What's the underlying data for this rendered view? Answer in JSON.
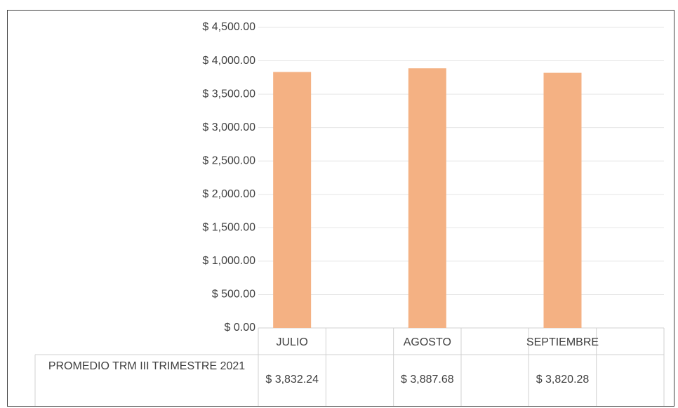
{
  "chart_data": {
    "type": "bar",
    "categories": [
      "JULIO",
      "AGOSTO",
      "SEPTIEMBRE"
    ],
    "series": [
      {
        "name": "PROMEDIO TRM III TRIMESTRE 2021",
        "color": "#f4b183",
        "values": [
          3832.24,
          3887.68,
          3820.28
        ],
        "value_labels": [
          "$ 3,832.24",
          "$ 3,887.68",
          "$ 3,820.28"
        ]
      }
    ],
    "ylim": [
      0,
      4500
    ],
    "yticks": [
      {
        "value": 0,
        "label": "$ 0.00"
      },
      {
        "value": 500,
        "label": "$ 500.00"
      },
      {
        "value": 1000,
        "label": "$ 1,000.00"
      },
      {
        "value": 1500,
        "label": "$ 1,500.00"
      },
      {
        "value": 2000,
        "label": "$ 2,000.00"
      },
      {
        "value": 2500,
        "label": "$ 2,500.00"
      },
      {
        "value": 3000,
        "label": "$ 3,000.00"
      },
      {
        "value": 3500,
        "label": "$ 3,500.00"
      },
      {
        "value": 4000,
        "label": "$ 4,000.00"
      },
      {
        "value": 4500,
        "label": "$ 4,500.00"
      }
    ],
    "grid": true
  }
}
